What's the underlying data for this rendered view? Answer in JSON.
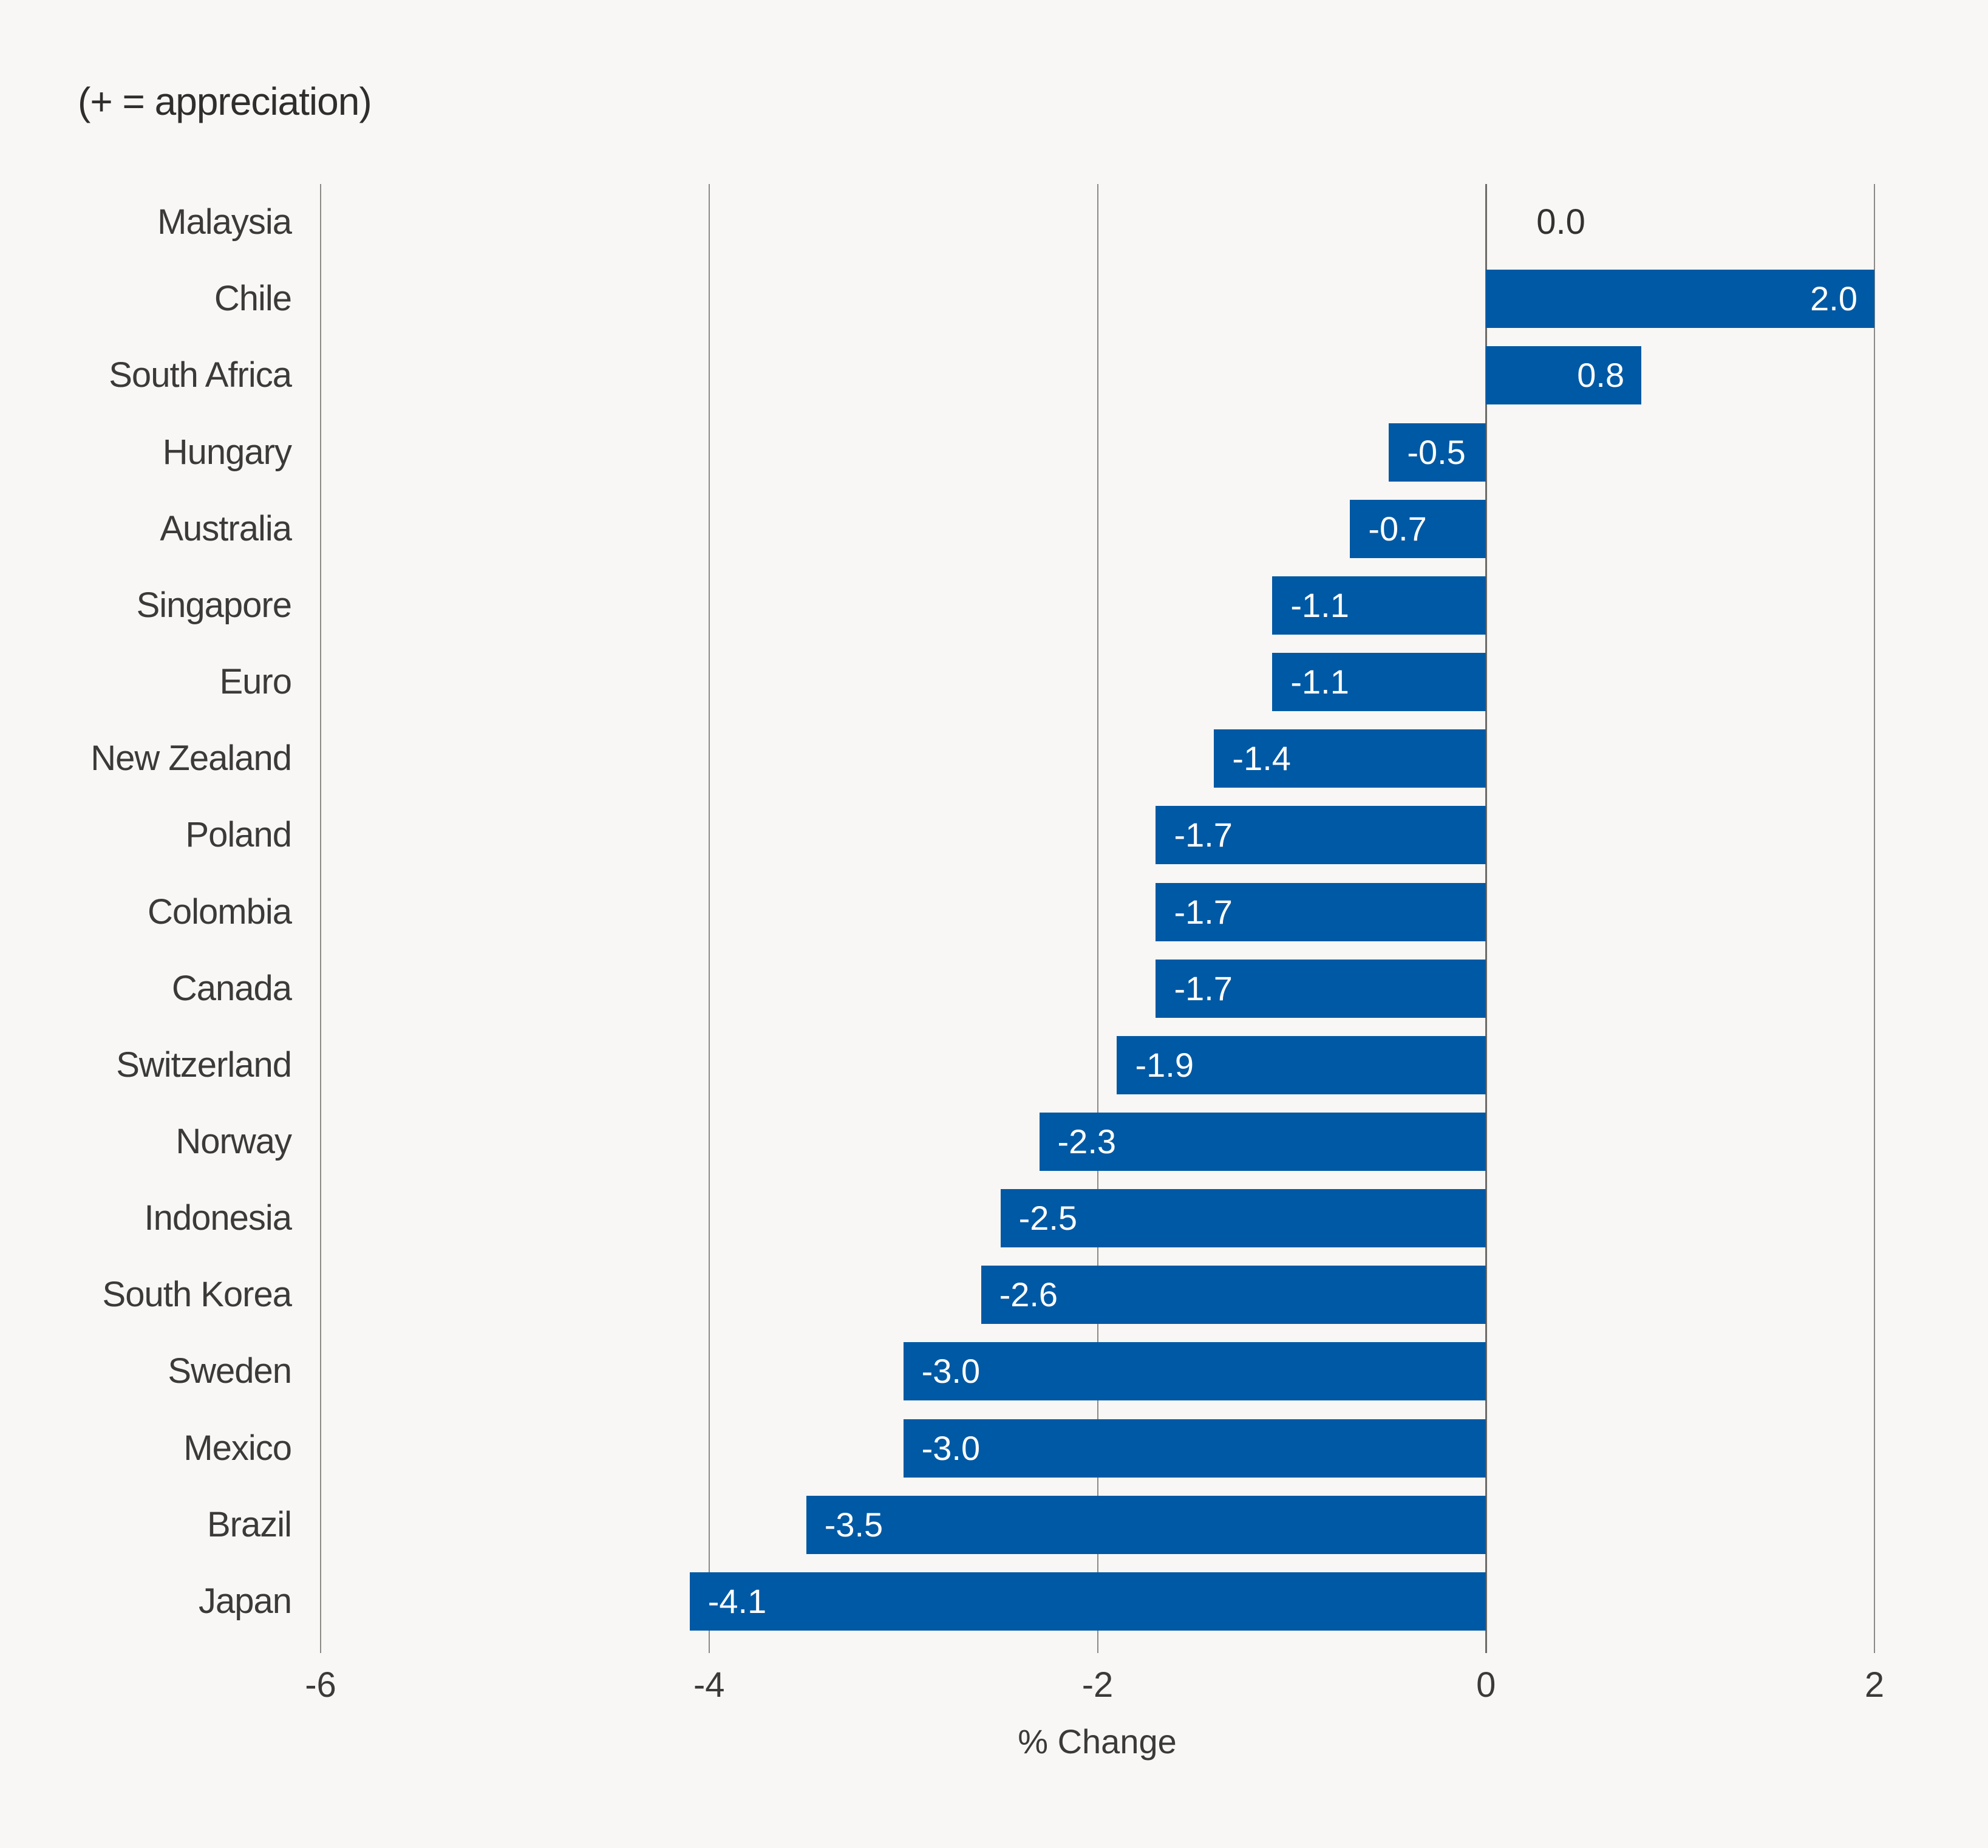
{
  "subtitle": "(+ = appreciation)",
  "chart_data": {
    "type": "bar",
    "orientation": "horizontal",
    "subtitle": "(+ = appreciation)",
    "xlabel": "% Change",
    "xlim": [
      -6,
      2
    ],
    "xticks": [
      -6,
      -4,
      -2,
      0,
      2
    ],
    "xtick_labels": [
      "-6",
      "-4",
      "-2",
      "0",
      "2"
    ],
    "grid": true,
    "legend": "none",
    "categories": [
      "Malaysia",
      "Chile",
      "South Africa",
      "Hungary",
      "Australia",
      "Singapore",
      "Euro",
      "New Zealand",
      "Poland",
      "Colombia",
      "Canada",
      "Switzerland",
      "Norway",
      "Indonesia",
      "South Korea",
      "Sweden",
      "Mexico",
      "Brazil",
      "Japan"
    ],
    "values": [
      0.0,
      2.0,
      0.8,
      -0.5,
      -0.7,
      -1.1,
      -1.1,
      -1.4,
      -1.7,
      -1.7,
      -1.7,
      -1.9,
      -2.3,
      -2.5,
      -2.6,
      -3.0,
      -3.0,
      -3.5,
      -4.1
    ],
    "value_labels": [
      "0.0",
      "2.0",
      "0.8",
      "-0.5",
      "-0.7",
      "-1.1",
      "-1.1",
      "-1.4",
      "-1.7",
      "-1.7",
      "-1.7",
      "-1.9",
      "-2.3",
      "-2.5",
      "-2.6",
      "-3.0",
      "-3.0",
      "-3.5",
      "-4.1"
    ],
    "colors": {
      "bar": "#0059a4",
      "background": "#f8f7f5",
      "gridline": "#8c8a86",
      "zero_line": "#6e6c68",
      "label_text": "#3b3a38",
      "bar_value_text": "#ffffff",
      "zero_value_text": "#333230"
    }
  }
}
